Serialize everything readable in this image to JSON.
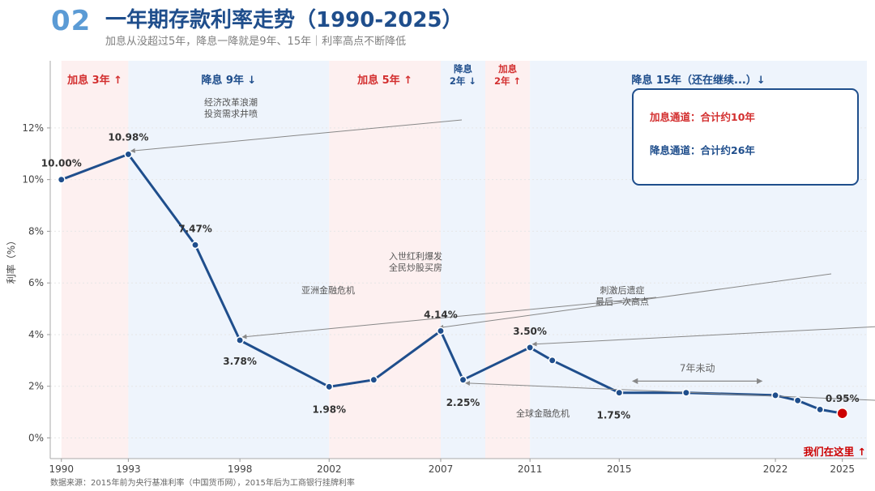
{
  "header": {
    "number": "02",
    "title": "一年期存款利率走势（1990-2025）",
    "subtitle": "加息从没超过5年，降息一降就是9年、15年｜利率高点不断降低"
  },
  "footer": {
    "source": "数据来源：2015年前为央行基准利率（中国货币网），2015年后为工商银行挂牌利率"
  },
  "colors": {
    "line": "#1f4e8c",
    "hike": "#d32f2f",
    "cut": "#1f4e8c",
    "hike_bg": "#fdf0f0",
    "cut_bg": "#eef4fc",
    "last_point": "#cc0000"
  },
  "chart_data": {
    "type": "line",
    "title": "",
    "xlabel": "",
    "ylabel": "利率（%）",
    "xlim": [
      1989.5,
      2026.1
    ],
    "ylim": [
      -0.8,
      14.6
    ],
    "grid": true,
    "xticks": [
      1990,
      1993,
      1998,
      2002,
      2007,
      2011,
      2015,
      2022,
      2025
    ],
    "yticks": [
      0,
      2,
      4,
      6,
      8,
      10,
      12
    ],
    "ytick_labels": [
      "0%",
      "2%",
      "4%",
      "6%",
      "8%",
      "10%",
      "12%"
    ],
    "series": [
      {
        "points": [
          {
            "x": 1990,
            "y": 10.0
          },
          {
            "x": 1993,
            "y": 10.98
          },
          {
            "x": 1996,
            "y": 7.47
          },
          {
            "x": 1998,
            "y": 3.78
          },
          {
            "x": 2002,
            "y": 1.98
          },
          {
            "x": 2004,
            "y": 2.25
          },
          {
            "x": 2007,
            "y": 4.14
          },
          {
            "x": 2008,
            "y": 2.25
          },
          {
            "x": 2011,
            "y": 3.5
          },
          {
            "x": 2012,
            "y": 3.0
          },
          {
            "x": 2015,
            "y": 1.75
          },
          {
            "x": 2018,
            "y": 1.75
          },
          {
            "x": 2022,
            "y": 1.65
          },
          {
            "x": 2023,
            "y": 1.45
          },
          {
            "x": 2024,
            "y": 1.1
          },
          {
            "x": 2025,
            "y": 0.95
          }
        ]
      }
    ],
    "data_labels": [
      {
        "x": 1990,
        "y": 10.0,
        "text": "10.00%",
        "pos": "above"
      },
      {
        "x": 1993,
        "y": 10.98,
        "text": "10.98%",
        "pos": "above"
      },
      {
        "x": 1996,
        "y": 7.47,
        "text": "7.47%",
        "pos": "above"
      },
      {
        "x": 1998,
        "y": 3.78,
        "text": "3.78%",
        "pos": "below"
      },
      {
        "x": 2002,
        "y": 1.98,
        "text": "1.98%",
        "pos": "below"
      },
      {
        "x": 2007,
        "y": 4.14,
        "text": "4.14%",
        "pos": "above"
      },
      {
        "x": 2008,
        "y": 2.25,
        "text": "2.25%",
        "pos": "below"
      },
      {
        "x": 2011,
        "y": 3.5,
        "text": "3.50%",
        "pos": "above"
      },
      {
        "x": 2015,
        "y": 1.75,
        "text": "1.75%",
        "pos": "below"
      },
      {
        "x": 2025,
        "y": 0.95,
        "text": "0.95%",
        "pos": "above"
      }
    ],
    "bands": [
      {
        "x0": 1990,
        "x1": 1993,
        "kind": "hike",
        "label": [
          "加息 3年 ↑"
        ]
      },
      {
        "x0": 1993,
        "x1": 2002,
        "kind": "cut",
        "label": [
          "降息 9年 ↓"
        ]
      },
      {
        "x0": 2002,
        "x1": 2007,
        "kind": "hike",
        "label": [
          "加息 5年 ↑"
        ]
      },
      {
        "x0": 2007,
        "x1": 2009,
        "kind": "cut",
        "label": [
          "降息",
          "2年 ↓"
        ]
      },
      {
        "x0": 2009,
        "x1": 2011,
        "kind": "hike",
        "label": [
          "加息",
          "2年 ↑"
        ]
      },
      {
        "x0": 2011,
        "x1": 2026.1,
        "kind": "cut",
        "label": [
          "降息 15年（还在继续...）↓"
        ]
      }
    ],
    "annotations": [
      {
        "text": [
          "经济改革浪潮",
          "投资需求井喷"
        ],
        "x": 1993,
        "y": 10.98
      },
      {
        "text": [
          "亚洲金融危机"
        ],
        "x": 1998,
        "y": 3.78
      },
      {
        "text": [
          "入世红利爆发",
          "全民炒股买房"
        ],
        "x": 2007,
        "y": 4.14
      },
      {
        "text": [
          "全球金融危机"
        ],
        "x": 2008,
        "y": 2.25
      },
      {
        "text": [
          "刺激后遗症",
          "最后一次高点"
        ],
        "x": 2011,
        "y": 3.5
      }
    ],
    "span_note": {
      "text": "7年未动",
      "x0": 2015.6,
      "x1": 2021.4,
      "y": 2.2
    },
    "here_label": "我们在这里 ↑",
    "legend_box": {
      "hike_text": "加息通道：合计约10年",
      "cut_text": "降息通道：合计约26年"
    }
  }
}
